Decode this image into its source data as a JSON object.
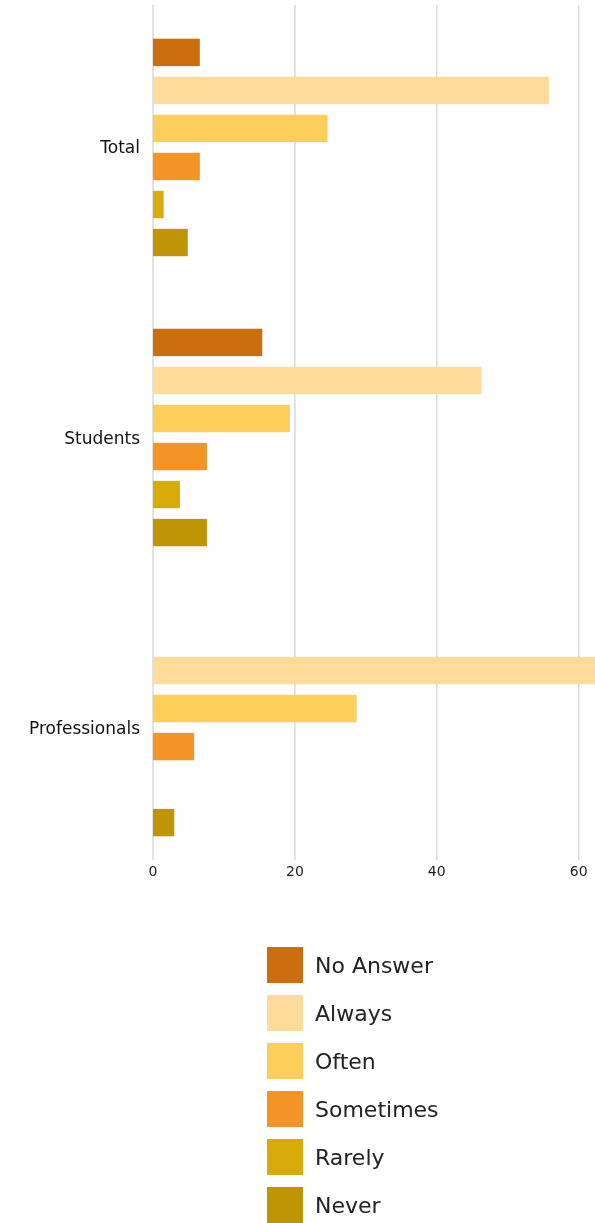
{
  "chart_data": {
    "type": "bar",
    "orientation": "horizontal",
    "categories": [
      "Total",
      "Students",
      "Professionals"
    ],
    "series": [
      {
        "name": "No Answer",
        "color": "#cc6e0e",
        "values": [
          6.6,
          15.4,
          null
        ]
      },
      {
        "name": "Always",
        "color": "#fedb98",
        "values": [
          55.8,
          46.3,
          62.3
        ]
      },
      {
        "name": "Often",
        "color": "#fdcf5a",
        "values": [
          24.6,
          19.3,
          28.7
        ]
      },
      {
        "name": "Sometimes",
        "color": "#f39424",
        "values": [
          6.6,
          7.6,
          5.8
        ]
      },
      {
        "name": "Rarely",
        "color": "#d9ab0a",
        "values": [
          1.5,
          3.8,
          null
        ]
      },
      {
        "name": "Never",
        "color": "#bf9505",
        "values": [
          4.9,
          7.6,
          3.0
        ]
      }
    ],
    "xlim": [
      0,
      62.3
    ],
    "xticks": [
      0,
      20,
      40,
      60
    ],
    "grid": "x",
    "legend": "bottom"
  }
}
